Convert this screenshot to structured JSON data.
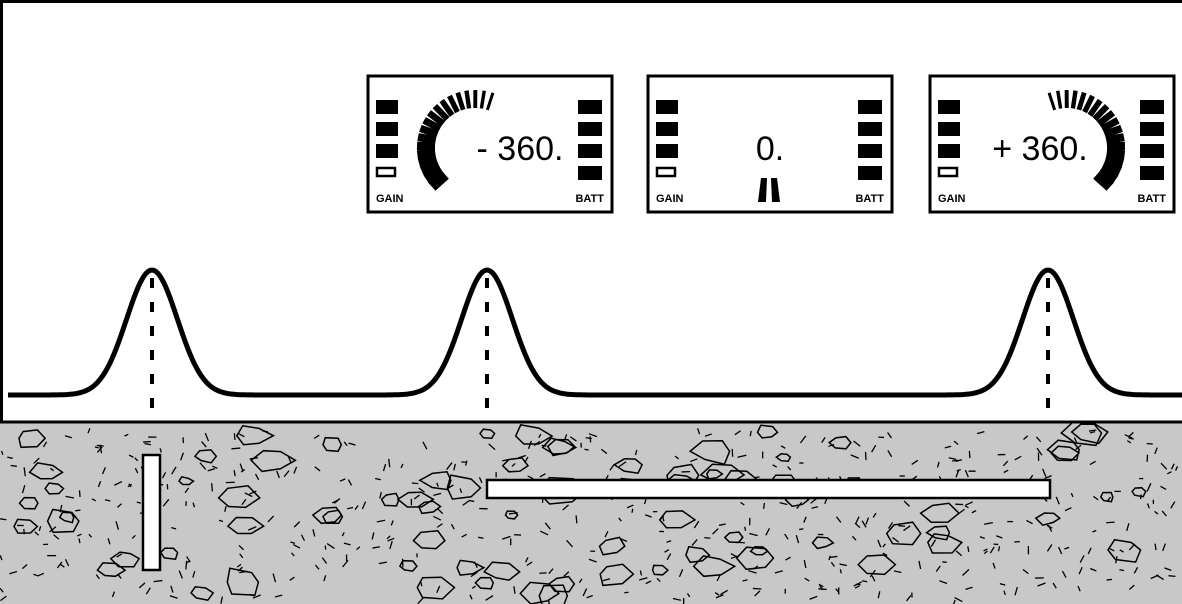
{
  "displays": [
    {
      "reading": "- 360.",
      "gain": "GAIN",
      "batt": "BATT"
    },
    {
      "reading": "0.",
      "gain": "GAIN",
      "batt": "BATT"
    },
    {
      "reading": "+ 360.",
      "gain": "GAIN",
      "batt": "BATT"
    }
  ]
}
